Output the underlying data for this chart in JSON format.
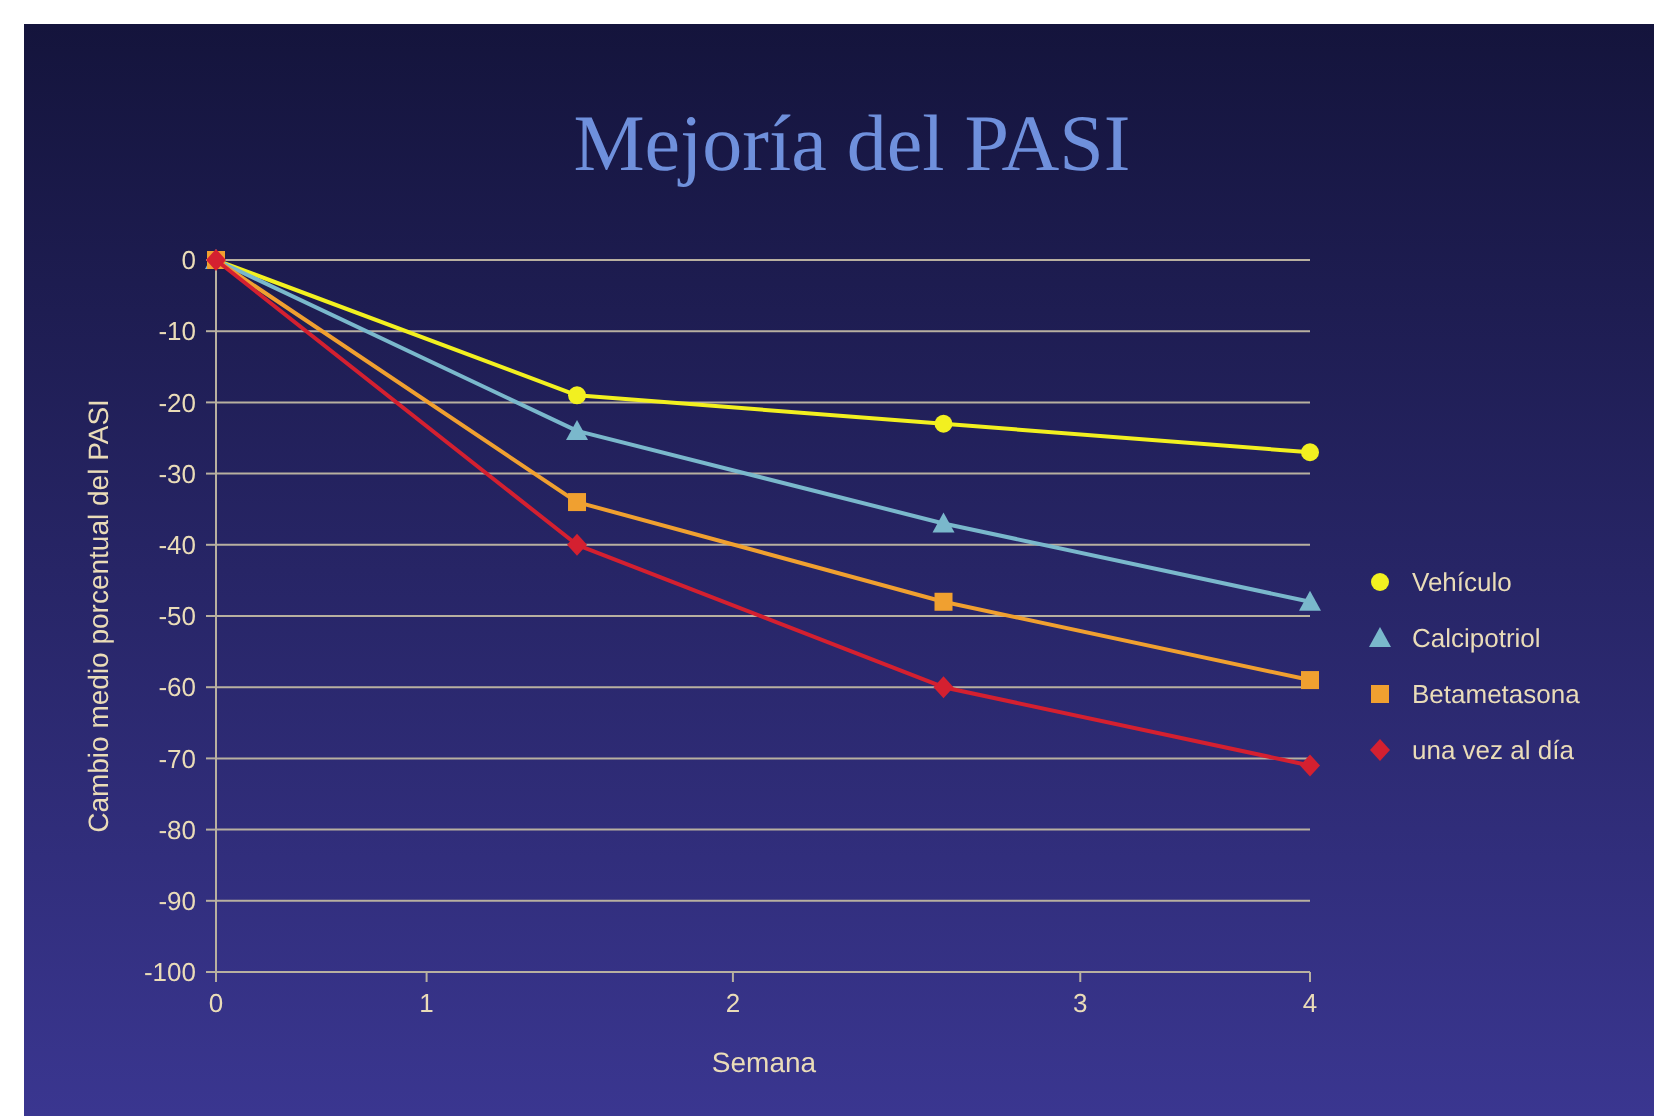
{
  "chart_data": {
    "type": "line",
    "title": "Mejoría del PASI",
    "xlabel": "Semana",
    "ylabel": "Cambio medio porcentual del PASI",
    "x": [
      0,
      1.32,
      2.66,
      4
    ],
    "xlim": [
      0,
      4
    ],
    "xticks": [
      0,
      {
        "value": 0.77,
        "label": "1"
      },
      {
        "value": 1.89,
        "label": "2"
      },
      {
        "value": 3.16,
        "label": "3"
      },
      4
    ],
    "ylim": [
      -100,
      0
    ],
    "yticks": [
      -100,
      -90,
      -80,
      -70,
      -60,
      -50,
      -40,
      -30,
      -20,
      -10,
      0
    ],
    "grid": "y",
    "legend": "right",
    "series": [
      {
        "name": "Vehículo",
        "color": "#f2f020",
        "marker": "circle",
        "values": [
          0,
          -19,
          -23,
          -27
        ]
      },
      {
        "name": "Calcipotriol",
        "color": "#7ab8cc",
        "marker": "triangle",
        "values": [
          0,
          -24,
          -37,
          -48
        ]
      },
      {
        "name": "Betametasona",
        "color": "#f0a030",
        "marker": "square",
        "values": [
          0,
          -34,
          -48,
          -59
        ]
      },
      {
        "name": "una vez al día",
        "color": "#d42030",
        "marker": "diamond",
        "values": [
          0,
          -40,
          -60,
          -71
        ]
      }
    ]
  }
}
